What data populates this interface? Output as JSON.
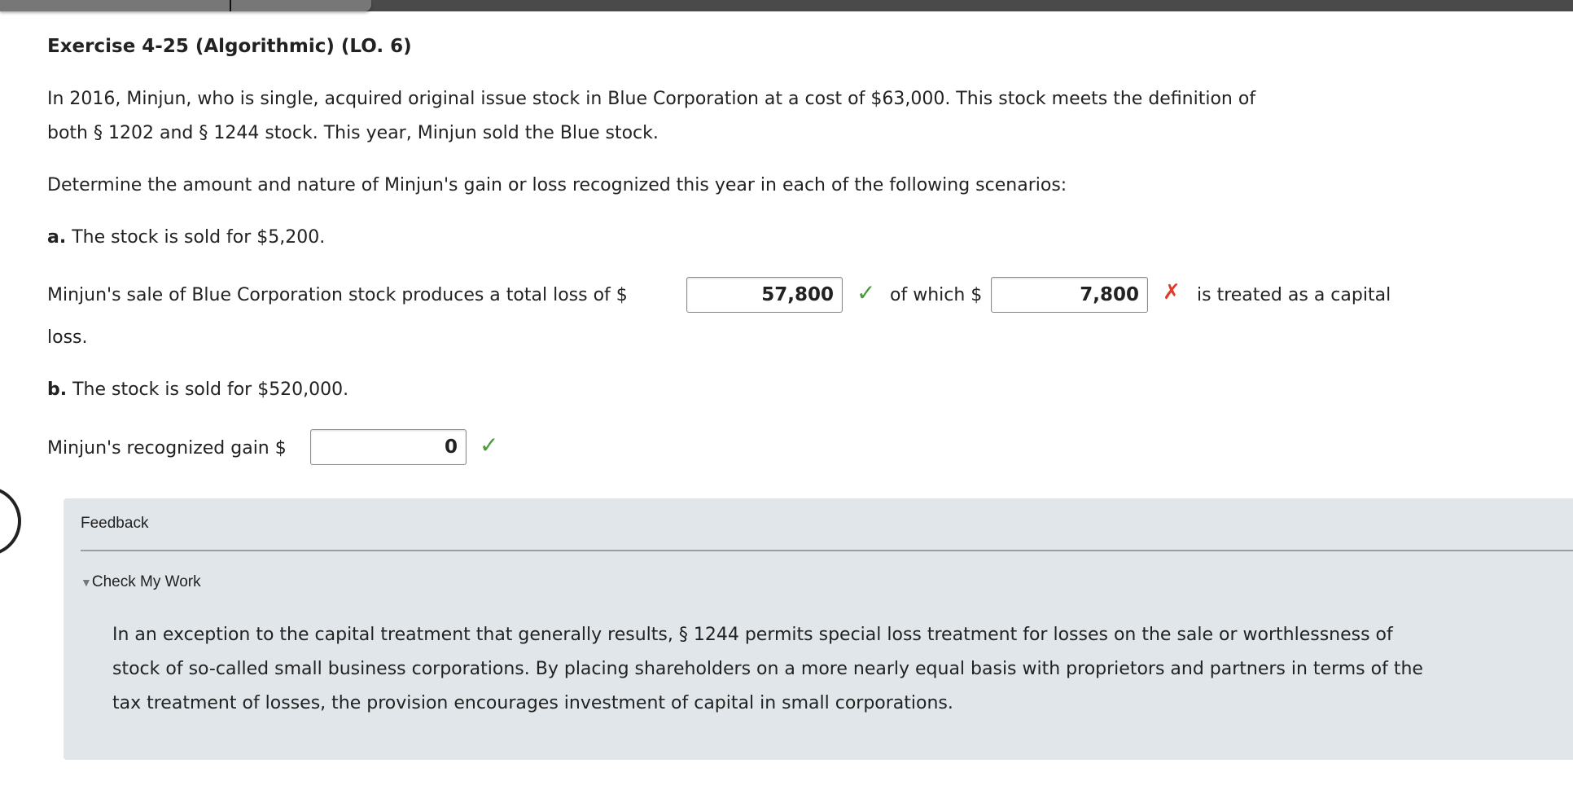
{
  "title": "Exercise 4-25 (Algorithmic) (LO. 6)",
  "intro": [
    "In 2016, Minjun, who is single, acquired original issue stock in Blue Corporation at a cost of $63,000. This stock meets the definition of",
    "both § 1202 and § 1244 stock. This year, Minjun sold the Blue stock."
  ],
  "instruction": "Determine the amount and nature of Minjun's gain or loss recognized this year in each of the following scenarios:",
  "part_a": {
    "label": "a.",
    "text": " The stock is sold for $5,200.",
    "sentence_start": "Minjun's sale of Blue Corporation stock produces a total loss of $",
    "total_loss": "57,800",
    "total_loss_status": "correct",
    "middle": "of which $",
    "capital_loss": "7,800",
    "capital_loss_status": "incorrect",
    "sentence_end": "is treated as a capital",
    "sentence_wrap": "loss."
  },
  "part_b": {
    "label": "b.",
    "text": " The stock is sold for $520,000.",
    "sentence_start": "Minjun's recognized gain $",
    "gain": "0",
    "gain_status": "correct"
  },
  "feedback": {
    "heading": "Feedback",
    "toggle": "Check My Work",
    "text": [
      "In an exception to the capital treatment that generally results, § 1244 permits special loss treatment for losses on the sale or worthlessness of",
      "stock of so-called small business corporations. By placing shareholders on a more nearly equal basis with proprietors and partners in terms of the",
      "tax treatment of losses, the provision encourages investment of capital in small corporations."
    ]
  },
  "icons": {
    "check": "✓",
    "cross": "✗",
    "triangle": "▼"
  },
  "colors": {
    "correct": "#4a9a3a",
    "incorrect": "#e23a2a",
    "feedback_bg": "#e0e6e9"
  }
}
